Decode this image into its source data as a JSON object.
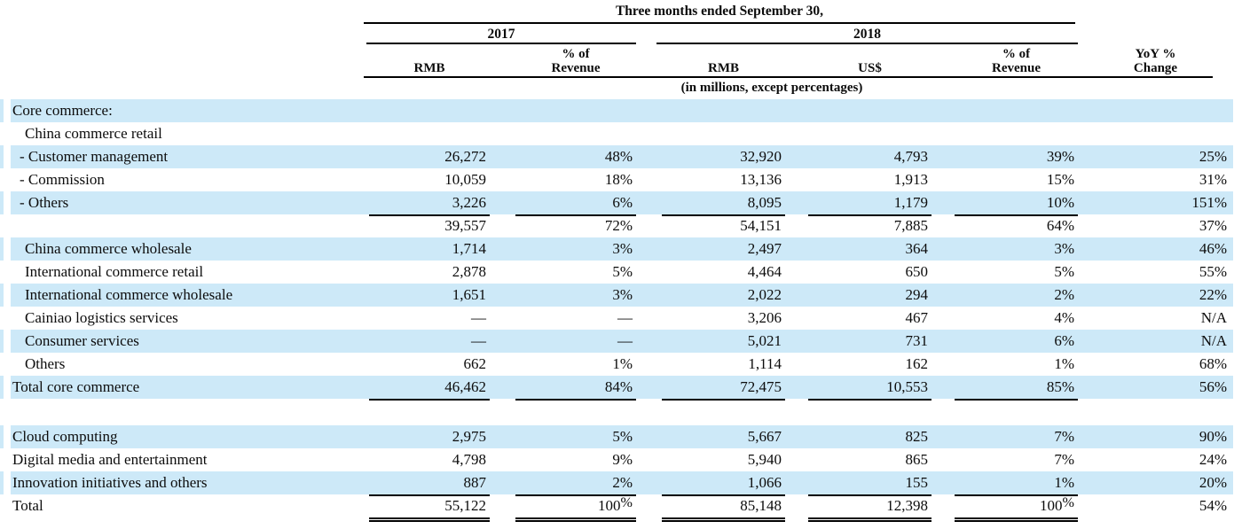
{
  "colors": {
    "stripe": "#cde9f8",
    "rule": "#000000",
    "text": "#0c0c0c"
  },
  "table": {
    "period_title": "Three months ended September 30,",
    "years": [
      "2017",
      "2018"
    ],
    "units_note": "(in millions, except percentages)",
    "columns": [
      {
        "id": "2017-rmb",
        "lines": [
          "RMB"
        ]
      },
      {
        "id": "2017-pct-of-revenue",
        "lines": [
          "% of",
          "Revenue"
        ]
      },
      {
        "id": "2018-rmb",
        "lines": [
          "RMB"
        ]
      },
      {
        "id": "2018-usd",
        "lines": [
          "US$"
        ]
      },
      {
        "id": "2018-pct-of-revenue",
        "lines": [
          "% of",
          "Revenue"
        ]
      },
      {
        "id": "yoy-pct-change",
        "lines": [
          "YoY %",
          "Change"
        ]
      }
    ],
    "rows": [
      {
        "label": "Core commerce:",
        "indent": "top",
        "stripe": true,
        "cells": [
          "",
          "",
          "",
          "",
          "",
          ""
        ]
      },
      {
        "label": "China commerce retail",
        "indent": "section",
        "stripe": false,
        "cells": [
          "",
          "",
          "",
          "",
          "",
          ""
        ]
      },
      {
        "label": "- Customer management",
        "indent": "dash",
        "stripe": true,
        "cells": [
          "26,272",
          "48%",
          "32,920",
          "4,793",
          "39%",
          "25%"
        ]
      },
      {
        "label": "- Commission",
        "indent": "dash",
        "stripe": false,
        "cells": [
          "10,059",
          "18%",
          "13,136",
          "1,913",
          "15%",
          "31%"
        ]
      },
      {
        "label": "- Others",
        "indent": "dash",
        "stripe": true,
        "border": "single",
        "cells": [
          "3,226",
          "6%",
          "8,095",
          "1,179",
          "10%",
          "151%"
        ]
      },
      {
        "label": "",
        "indent": "top",
        "stripe": false,
        "cells": [
          "39,557",
          "72%",
          "54,151",
          "7,885",
          "64%",
          "37%"
        ]
      },
      {
        "label": "China commerce wholesale",
        "indent": "section",
        "stripe": true,
        "cells": [
          "1,714",
          "3%",
          "2,497",
          "364",
          "3%",
          "46%"
        ]
      },
      {
        "label": "International commerce retail",
        "indent": "section",
        "stripe": false,
        "cells": [
          "2,878",
          "5%",
          "4,464",
          "650",
          "5%",
          "55%"
        ]
      },
      {
        "label": "International commerce wholesale",
        "indent": "section",
        "stripe": true,
        "cells": [
          "1,651",
          "3%",
          "2,022",
          "294",
          "2%",
          "22%"
        ]
      },
      {
        "label": "Cainiao logistics services",
        "indent": "section",
        "stripe": false,
        "cells": [
          "—",
          "—",
          "3,206",
          "467",
          "4%",
          "N/A"
        ]
      },
      {
        "label": "Consumer services",
        "indent": "section",
        "stripe": true,
        "cells": [
          "—",
          "—",
          "5,021",
          "731",
          "6%",
          "N/A"
        ]
      },
      {
        "label": "Others",
        "indent": "section",
        "stripe": false,
        "border": "single",
        "cells": [
          "662",
          "1%",
          "1,114",
          "162",
          "1%",
          "68%"
        ]
      },
      {
        "label": "Total core commerce",
        "indent": "top",
        "stripe": true,
        "border": "single",
        "cells": [
          "46,462",
          "84%",
          "72,475",
          "10,553",
          "85%",
          "56%"
        ]
      },
      {
        "spacer": true
      },
      {
        "label": "Cloud computing",
        "indent": "top",
        "stripe": true,
        "cells": [
          "2,975",
          "5%",
          "5,667",
          "825",
          "7%",
          "90%"
        ]
      },
      {
        "label": "Digital media and entertainment",
        "indent": "top",
        "stripe": false,
        "cells": [
          "4,798",
          "9%",
          "5,940",
          "865",
          "7%",
          "24%"
        ]
      },
      {
        "label": "Innovation initiatives and others",
        "indent": "top",
        "stripe": true,
        "border": "single",
        "cells": [
          "887",
          "2%",
          "1,066",
          "155",
          "1%",
          "20%"
        ]
      },
      {
        "label": "Total",
        "indent": "top",
        "stripe": false,
        "border": "double",
        "cells": [
          "55,122",
          "100^%",
          "85,148",
          "12,398",
          "100^%",
          "54%"
        ]
      }
    ]
  }
}
